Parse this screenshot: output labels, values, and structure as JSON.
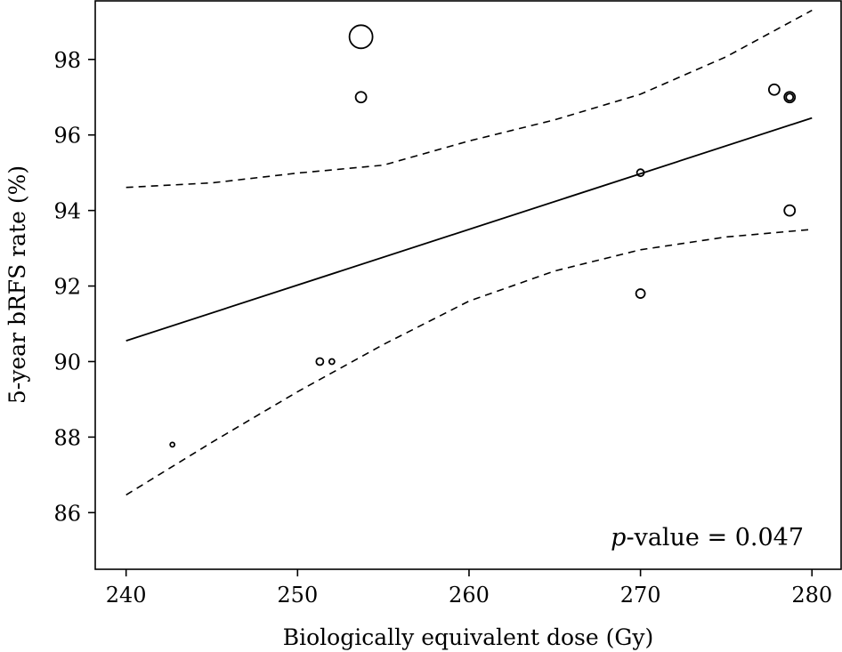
{
  "chart_data": {
    "type": "scatter",
    "title": "",
    "xlabel": "Biologically equivalent dose (Gy)",
    "ylabel": "5-year bRFS rate (%)",
    "xlim": [
      238.2,
      281.7
    ],
    "ylim": [
      84.5,
      99.55
    ],
    "xticks": [
      240,
      250,
      260,
      270,
      280
    ],
    "yticks": [
      86,
      88,
      90,
      92,
      94,
      96,
      98
    ],
    "grid": false,
    "points": [
      {
        "x": 253.7,
        "y": 98.6,
        "size": 13
      },
      {
        "x": 253.7,
        "y": 97.0,
        "size": 6
      },
      {
        "x": 277.8,
        "y": 97.2,
        "size": 6
      },
      {
        "x": 278.7,
        "y": 97.0,
        "size": 6
      },
      {
        "x": 278.7,
        "y": 97.0,
        "size": 4
      },
      {
        "x": 270.0,
        "y": 95.0,
        "size": 4
      },
      {
        "x": 278.7,
        "y": 94.0,
        "size": 6
      },
      {
        "x": 270.0,
        "y": 91.8,
        "size": 5
      },
      {
        "x": 251.3,
        "y": 90.0,
        "size": 4
      },
      {
        "x": 252.0,
        "y": 90.0,
        "size": 3
      },
      {
        "x": 242.7,
        "y": 87.8,
        "size": 2.5
      }
    ],
    "regression_line": {
      "x": [
        240,
        280
      ],
      "y": [
        90.55,
        96.45
      ]
    },
    "ci_upper": {
      "x": [
        240,
        245,
        250,
        255,
        260,
        265,
        270,
        275,
        280
      ],
      "y": [
        94.61,
        94.73,
        94.99,
        95.2,
        95.84,
        96.4,
        97.08,
        98.07,
        99.3
      ]
    },
    "ci_lower": {
      "x": [
        240,
        245,
        250,
        255,
        260,
        265,
        270,
        275,
        280
      ],
      "y": [
        86.47,
        87.86,
        89.2,
        90.45,
        91.6,
        92.4,
        92.96,
        93.3,
        93.5
      ]
    },
    "annotation": {
      "italic": "p",
      "text": "-value = 0.047"
    }
  }
}
